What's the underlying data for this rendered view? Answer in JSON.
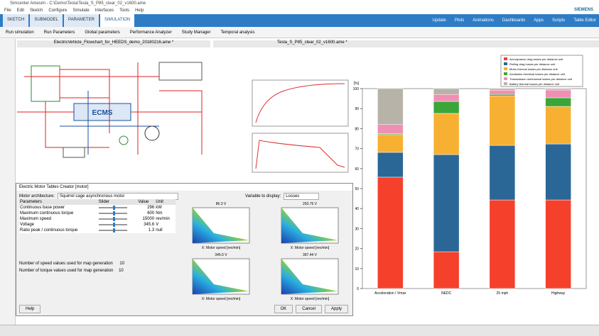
{
  "window": {
    "title": "Simcenter Amesim - C:\\Demo\\Tesla\\Tesla_S_P85_clear_02_v1600.ame",
    "brand": "SIEMENS"
  },
  "menu": [
    "File",
    "Edit",
    "Sketch",
    "Configure",
    "Simulate",
    "Interfaces",
    "Tools",
    "Help"
  ],
  "ribbon": {
    "tabs": [
      "SKETCH",
      "SUBMODEL",
      "PARAMETER",
      "SIMULATION"
    ],
    "tools": [
      "Update",
      "Plots",
      "Animations",
      "Dashboards",
      "Apps",
      "Scripts",
      "Table Editor"
    ]
  },
  "toolbar": [
    "Run simulation",
    "Run Parameters",
    "Global parameters",
    "Performance Analyzer",
    "Study Manager",
    "Temporal analysis"
  ],
  "documents": [
    "ElectricVehicle_Flowchart_for_HEEDS_demo_20180216.ame *",
    "Tesla_S_P85_clear_02_v1600.ame *"
  ],
  "diagram": {
    "controller": "ECMS"
  },
  "dialog": {
    "title": "Electric Motor Tables Creator [motor]",
    "architecture_label": "Motor architecture:",
    "architecture": "Squirrel cage asynchronous motor",
    "display_label": "Variable to display:",
    "display": "Losses",
    "table": {
      "header": [
        "Parameters",
        "Slider",
        "Value",
        "Unit"
      ],
      "rows": [
        [
          "Continuous base power",
          296,
          "kW"
        ],
        [
          "Maximum continuous torque",
          600,
          "Nm"
        ],
        [
          "Maximum speed",
          15000,
          "rev/min"
        ],
        [
          "Voltage",
          345.6,
          "V"
        ],
        [
          "Ratio peak / continuous torque",
          1.3,
          "null"
        ]
      ]
    },
    "speed_label": "Number of speed values used for map generation",
    "speed_count": 10,
    "torque_label": "Number of torque values used for map generation",
    "torque_count": 10,
    "maps": [
      "86.3 V",
      "293.75 V",
      "345.6 V",
      "397.44 V"
    ],
    "map_xlabel": "X: Motor speed [rev/min]",
    "buttons": [
      "Help",
      "OK",
      "Cancel",
      "Apply"
    ]
  },
  "chart_data": {
    "type": "stacked-bar",
    "ylabel": "[%]",
    "categories": [
      "Acceleration / Vmax",
      "NEDC",
      "25 mph",
      "Highway"
    ],
    "ylim": [
      0,
      100
    ],
    "yticks": [
      0,
      10,
      20,
      30,
      40,
      50,
      60,
      70,
      80,
      90,
      100
    ],
    "series": [
      {
        "name": "Aerodynamic drag losses per distance unit",
        "color": "#f5402c",
        "values": [
          55.7,
          18.4,
          44.3,
          44.3
        ]
      },
      {
        "name": "Rolling drag losses per distance unit",
        "color": "#2a6796",
        "values": [
          12.4,
          48.6,
          27.3,
          28.0
        ]
      },
      {
        "name": "Motor thermal losses per distance unit",
        "color": "#f8b032",
        "values": [
          8.9,
          20.6,
          24.8,
          18.8
        ]
      },
      {
        "name": "Auxiliaries electrical losses per distance unit",
        "color": "#3aa63a",
        "values": [
          0.4,
          6.0,
          0.7,
          4.3
        ]
      },
      {
        "name": "Transmission mechanical losses per distance unit",
        "color": "#f08fb4",
        "values": [
          4.6,
          3.5,
          2.1,
          3.9
        ]
      },
      {
        "name": "Battery thermal losses per distance unit",
        "color": "#b8b3a8",
        "values": [
          18.0,
          2.9,
          0.8,
          0.7
        ]
      }
    ]
  }
}
